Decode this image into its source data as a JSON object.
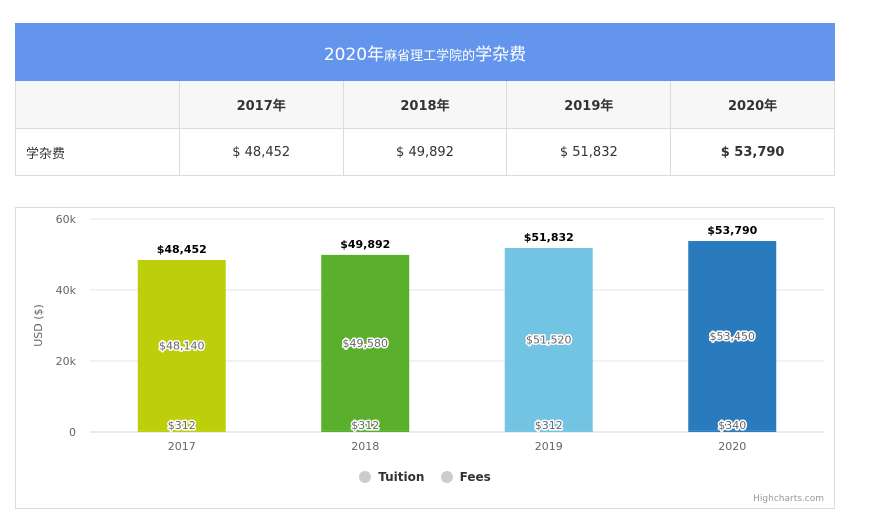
{
  "table": {
    "title_year": "2020年",
    "title_school": "麻省理工学院的",
    "title_suffix": "学杂费",
    "header": [
      "",
      "2017年",
      "2018年",
      "2019年",
      "2020年"
    ],
    "row_label": "学杂费",
    "row_values": [
      "$ 48,452",
      "$ 49,892",
      "$ 51,832",
      "$ 53,790"
    ]
  },
  "chart_data": {
    "type": "bar",
    "stacked": true,
    "categories": [
      "2017",
      "2018",
      "2019",
      "2020"
    ],
    "series": [
      {
        "name": "Tuition",
        "values": [
          48140,
          49580,
          51520,
          53450
        ],
        "labels": [
          "$48,140",
          "$49,580",
          "$51,520",
          "$53,450"
        ]
      },
      {
        "name": "Fees",
        "values": [
          312,
          312,
          312,
          340
        ],
        "labels": [
          "$312",
          "$312",
          "$312",
          "$340"
        ]
      }
    ],
    "totals": [
      48452,
      49892,
      51832,
      53790
    ],
    "total_labels": [
      "$48,452",
      "$49,892",
      "$51,832",
      "$53,790"
    ],
    "bar_colors": [
      "#bccf0a",
      "#5aaf2d",
      "#73c3e2",
      "#2a7bbd"
    ],
    "ylabel": "USD ($)",
    "xlabel": "",
    "ylim": [
      0,
      60000
    ],
    "yticks": [
      0,
      20000,
      40000,
      60000
    ],
    "ytick_labels": [
      "0",
      "20k",
      "40k",
      "60k"
    ],
    "grid": true,
    "legend_position": "bottom-center",
    "credits": "Highcharts.com"
  }
}
